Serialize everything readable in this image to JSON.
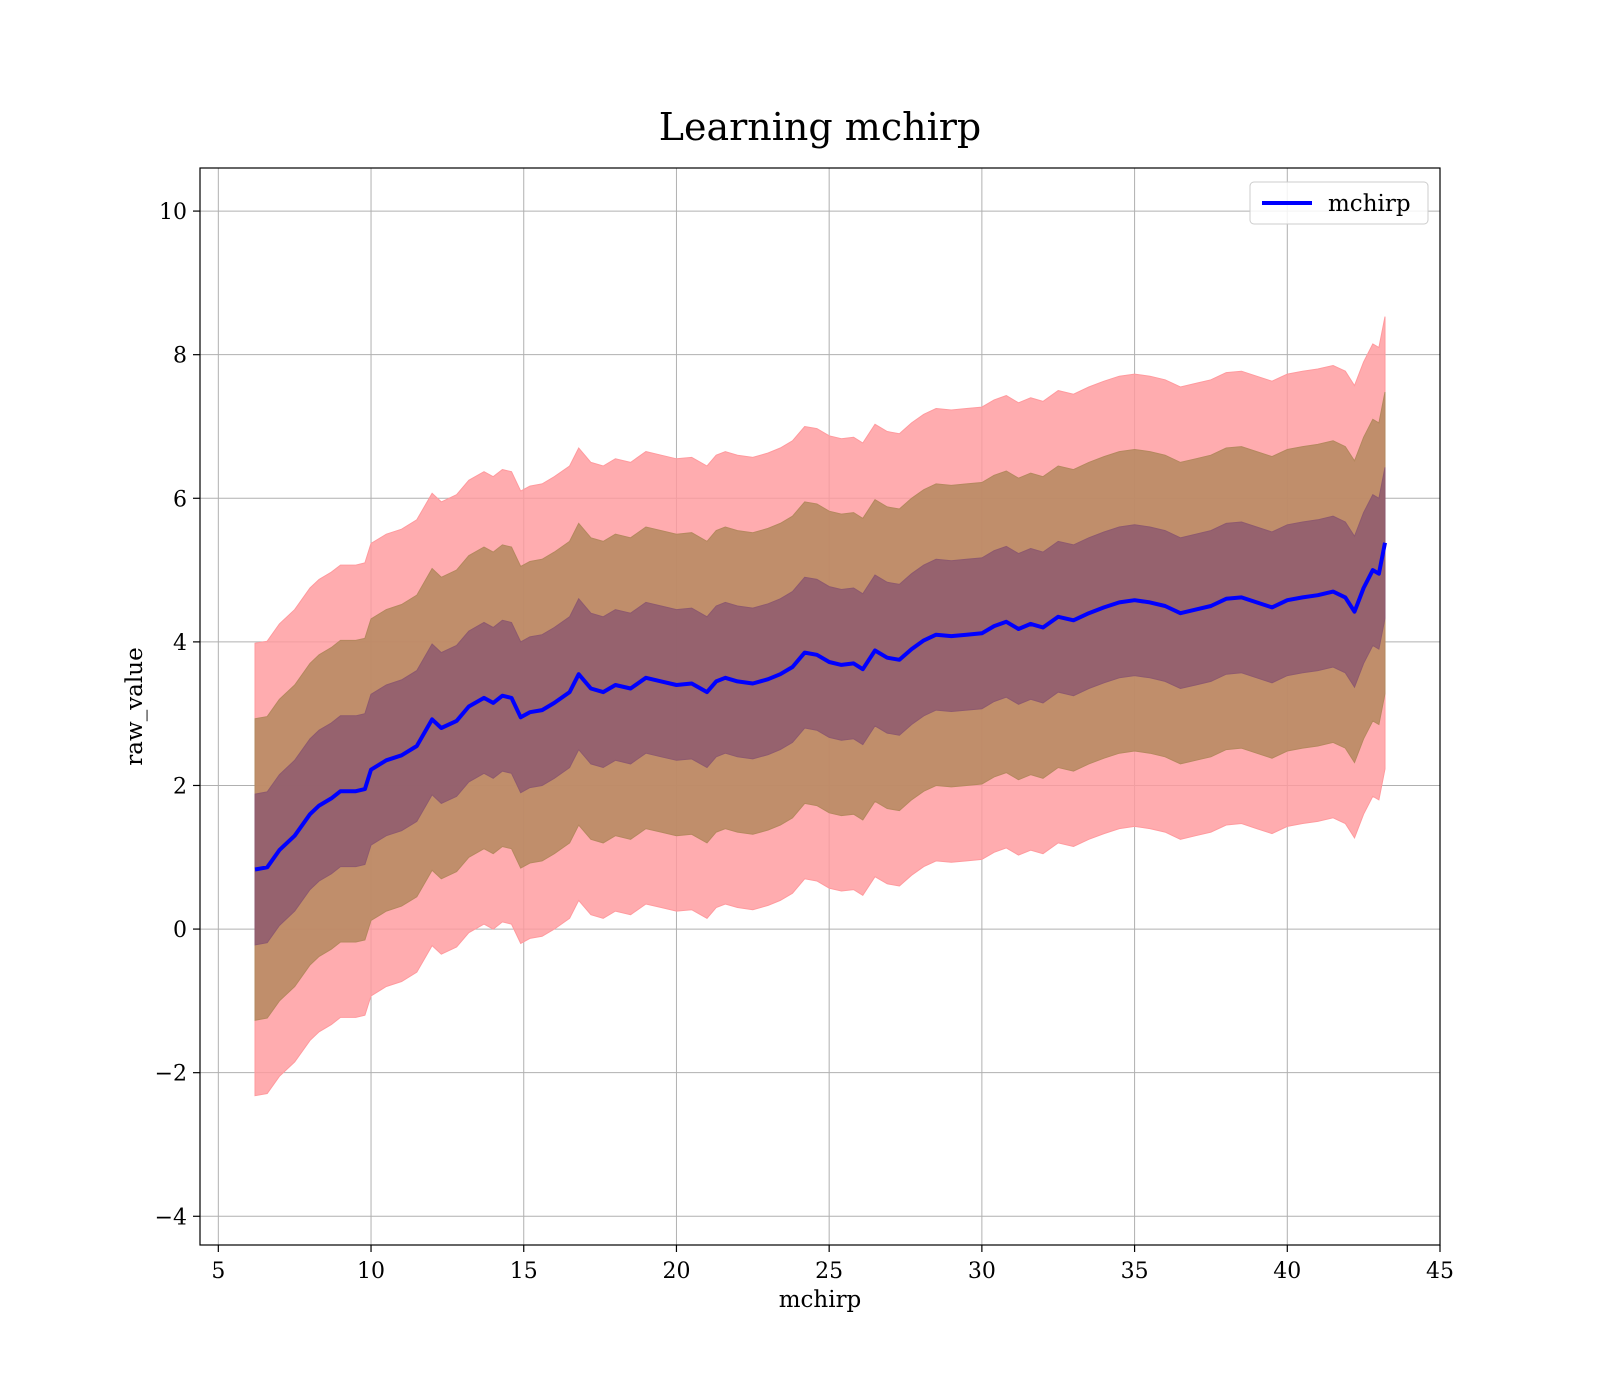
{
  "chart_data": {
    "type": "area",
    "title": "Learning mchirp",
    "xlabel": "mchirp",
    "ylabel": "raw_value",
    "xlim": [
      4.4,
      45
    ],
    "ylim": [
      -4.4,
      10.6
    ],
    "xticks": [
      5,
      10,
      15,
      20,
      25,
      30,
      35,
      40,
      45
    ],
    "yticks": [
      -4,
      -2,
      0,
      2,
      4,
      6,
      8,
      10
    ],
    "xtick_labels": [
      "5",
      "10",
      "15",
      "20",
      "25",
      "30",
      "35",
      "40",
      "45"
    ],
    "ytick_labels": [
      "−4",
      "−2",
      "0",
      "2",
      "4",
      "6",
      "8",
      "10"
    ],
    "grid": true,
    "legend": {
      "placement": "upper right",
      "entries": [
        "mchirp"
      ]
    },
    "colors": {
      "line": "#0000ff",
      "band_3sigma": "#ff9a9e",
      "band_2sigma": "#b5885f",
      "band_1sigma": "#8e5a6e"
    },
    "band_sigma_width": 1.05,
    "series": [
      {
        "name": "mchirp",
        "x": [
          6.2,
          6.6,
          7.0,
          7.5,
          8.0,
          8.3,
          8.7,
          9.0,
          9.5,
          9.8,
          10.0,
          10.5,
          11.0,
          11.5,
          12.0,
          12.3,
          12.8,
          13.2,
          13.7,
          14.0,
          14.3,
          14.6,
          14.9,
          15.2,
          15.6,
          16.0,
          16.5,
          16.8,
          17.2,
          17.6,
          18.0,
          18.5,
          19.0,
          19.5,
          20.0,
          20.5,
          21.0,
          21.3,
          21.6,
          22.0,
          22.5,
          23.0,
          23.4,
          23.8,
          24.2,
          24.6,
          25.0,
          25.4,
          25.8,
          26.1,
          26.5,
          26.9,
          27.3,
          27.7,
          28.1,
          28.5,
          29.0,
          29.5,
          30.0,
          30.4,
          30.8,
          31.2,
          31.6,
          32.0,
          32.5,
          33.0,
          33.5,
          34.0,
          34.5,
          35.0,
          35.5,
          36.0,
          36.5,
          37.0,
          37.5,
          38.0,
          38.5,
          39.0,
          39.5,
          40.0,
          40.5,
          41.0,
          41.5,
          41.9,
          42.2,
          42.5,
          42.8,
          43.0,
          43.2
        ],
        "y": [
          0.83,
          0.86,
          1.1,
          1.3,
          1.6,
          1.72,
          1.82,
          1.92,
          1.92,
          1.95,
          2.22,
          2.35,
          2.42,
          2.55,
          2.92,
          2.8,
          2.9,
          3.1,
          3.22,
          3.15,
          3.25,
          3.22,
          2.95,
          3.02,
          3.05,
          3.15,
          3.3,
          3.55,
          3.35,
          3.3,
          3.4,
          3.35,
          3.5,
          3.45,
          3.4,
          3.42,
          3.3,
          3.45,
          3.5,
          3.45,
          3.42,
          3.48,
          3.55,
          3.65,
          3.85,
          3.82,
          3.72,
          3.68,
          3.7,
          3.62,
          3.88,
          3.78,
          3.75,
          3.9,
          4.02,
          4.1,
          4.08,
          4.1,
          4.12,
          4.22,
          4.28,
          4.18,
          4.25,
          4.2,
          4.35,
          4.3,
          4.4,
          4.48,
          4.55,
          4.58,
          4.55,
          4.5,
          4.4,
          4.45,
          4.5,
          4.6,
          4.62,
          4.55,
          4.48,
          4.58,
          4.62,
          4.65,
          4.7,
          4.62,
          4.42,
          4.75,
          5.0,
          4.95,
          5.38
        ]
      }
    ]
  }
}
